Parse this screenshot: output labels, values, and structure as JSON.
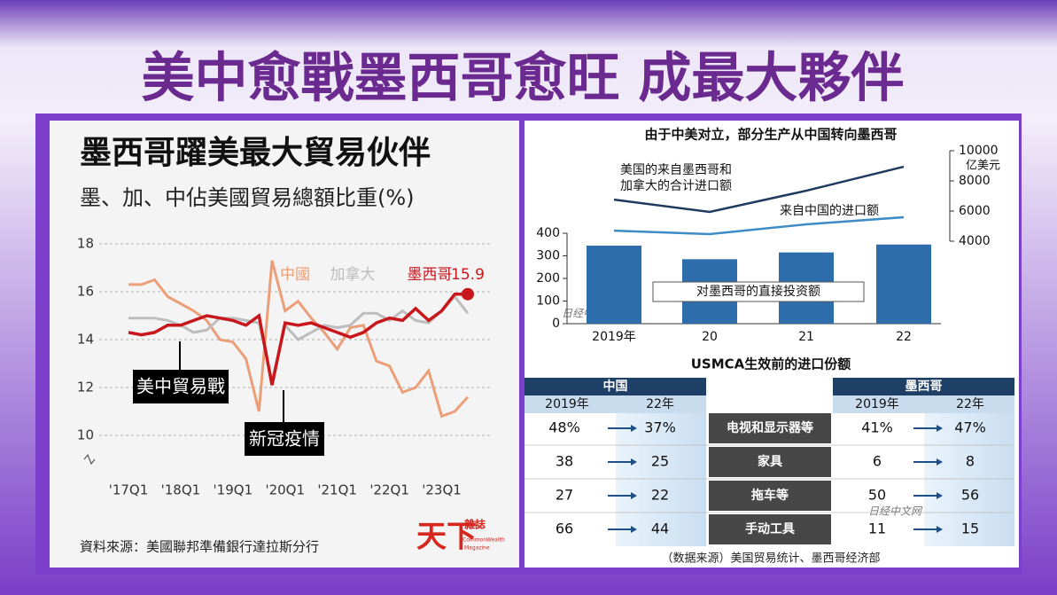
{
  "header": {
    "title": "美中愈戰墨西哥愈旺  成最大夥伴"
  },
  "chart_data": [
    {
      "type": "line",
      "title": "墨西哥躍美最大貿易伙伴",
      "subtitle": "墨、加、中佔美國貿易總額比重(%)",
      "categories": [
        "'17Q1",
        null,
        null,
        null,
        "'18Q1",
        null,
        null,
        null,
        "'19Q1",
        null,
        null,
        null,
        "'20Q1",
        null,
        null,
        null,
        "'21Q1",
        null,
        null,
        null,
        "'22Q1",
        null,
        null,
        null,
        "'23Q1",
        null,
        null
      ],
      "series": [
        {
          "name": "中國",
          "color": "#eb9f78",
          "values": [
            16.3,
            16.3,
            16.5,
            15.8,
            15.5,
            15.2,
            14.8,
            14.0,
            13.9,
            13.2,
            11.0,
            17.3,
            15.2,
            15.6,
            14.9,
            14.3,
            13.6,
            14.5,
            14.6,
            13.1,
            12.9,
            11.8,
            12.0,
            12.7,
            10.8,
            11.0,
            11.6
          ]
        },
        {
          "name": "加拿大",
          "color": "#bdbdbd",
          "values": [
            14.9,
            14.9,
            14.9,
            14.8,
            14.6,
            14.3,
            14.4,
            14.9,
            14.9,
            14.8,
            14.7,
            12.3,
            14.6,
            14.0,
            14.3,
            14.6,
            14.5,
            14.6,
            15.1,
            15.1,
            14.8,
            15.2,
            14.8,
            14.7,
            15.2,
            15.8,
            15.1
          ]
        },
        {
          "name": "墨西哥",
          "color": "#c8161d",
          "values": [
            14.3,
            14.2,
            14.3,
            14.6,
            14.6,
            14.8,
            15.0,
            14.9,
            14.8,
            14.6,
            15.0,
            12.1,
            14.7,
            14.6,
            14.7,
            14.5,
            14.3,
            14.1,
            14.3,
            14.7,
            14.9,
            14.8,
            15.3,
            14.8,
            15.2,
            15.9,
            15.9
          ],
          "value_labels": [
            null,
            null,
            null,
            null,
            null,
            null,
            null,
            null,
            null,
            null,
            null,
            null,
            null,
            null,
            null,
            null,
            null,
            null,
            null,
            null,
            null,
            null,
            null,
            null,
            null,
            null,
            "15.9"
          ]
        }
      ],
      "ylim": [
        9,
        18
      ],
      "yticks": [
        10,
        12,
        14,
        16,
        18
      ],
      "grid": true,
      "annotations": [
        "美中貿易戰",
        "新冠疫情"
      ],
      "source": "資料來源：美國聯邦準備銀行達拉斯分行",
      "logo": [
        "天下",
        "雜誌",
        "CommonWealth",
        "Magazine"
      ]
    },
    {
      "type": "bar",
      "title": "由于中美对立，部分生产从中国转向墨西哥",
      "categories": [
        "2019年",
        "20",
        "21",
        "22"
      ],
      "series": [
        {
          "name": "对墨西哥的直接投资额",
          "type": "bar",
          "color": "#2e6dab",
          "values": [
            345,
            285,
            315,
            350
          ]
        },
        {
          "name": [
            "美国的来自墨西哥和",
            "加拿大的合计进口额"
          ],
          "type": "line",
          "axis": "y2",
          "color": "#1f3a5f",
          "values": [
            6760,
            5940,
            7350,
            8940
          ]
        },
        {
          "name": "来自中国的进口额",
          "type": "line",
          "axis": "y2",
          "color": "#3d8cc6",
          "values": [
            4700,
            4470,
            5120,
            5590
          ]
        }
      ],
      "ylim": [
        0,
        400
      ],
      "yticks": [
        0,
        100,
        200,
        300,
        400
      ],
      "y2lim": [
        4000,
        10000
      ],
      "y2ticks": [
        4000,
        6000,
        8000,
        10000
      ],
      "y2label": "亿美元",
      "watermark": "日经中文网"
    }
  ],
  "table": {
    "title": "USMCA生效前的进口份额",
    "groups": [
      "中国",
      "墨西哥"
    ],
    "subheaders": [
      "2019年",
      "22年",
      "2019年",
      "22年"
    ],
    "rows": [
      [
        "48%",
        "37%",
        "电视和显示器等",
        "41%",
        "47%"
      ],
      [
        "38",
        "25",
        "家具",
        "6",
        "8"
      ],
      [
        "27",
        "22",
        "拖车等",
        "50",
        "56"
      ],
      [
        "66",
        "44",
        "手动工具",
        "11",
        "15"
      ]
    ],
    "watermark": "日经中文网",
    "source": "（数据来源）美国贸易统计、墨西哥经济部"
  }
}
